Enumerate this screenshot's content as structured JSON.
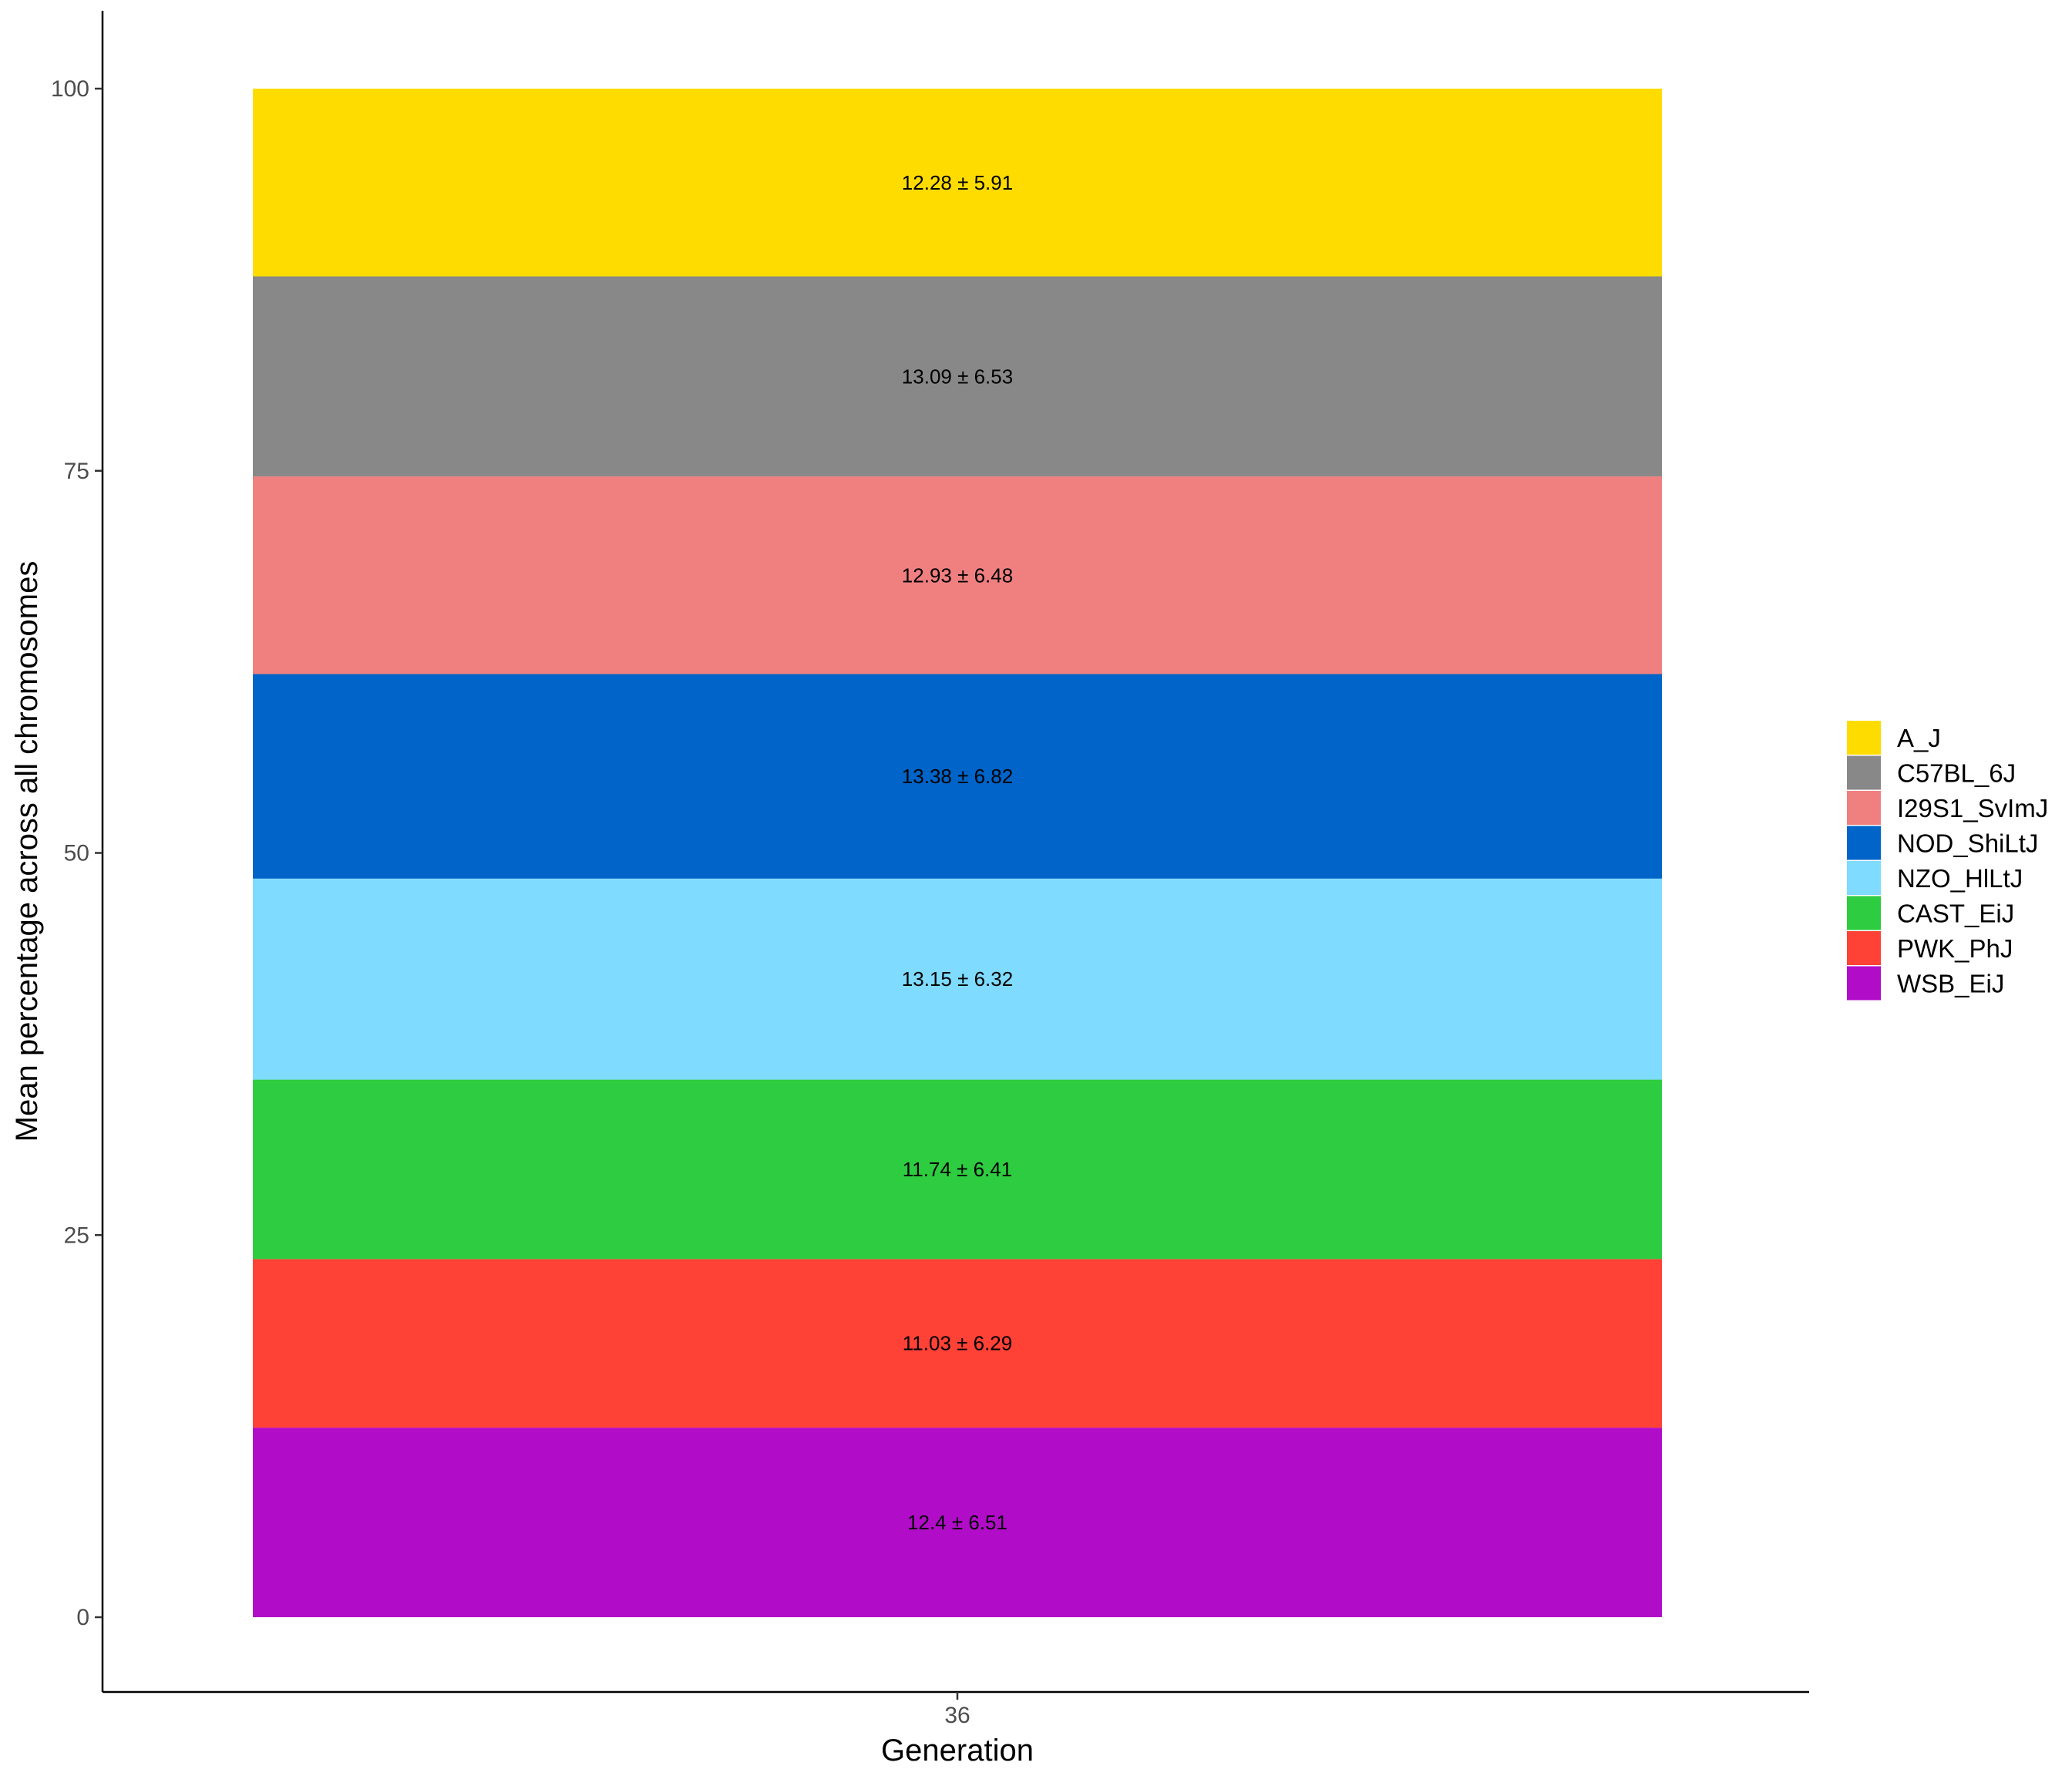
{
  "chart_data": {
    "type": "bar",
    "stacked": true,
    "title": "",
    "xlabel": "Generation",
    "ylabel": "Mean percentage across all chromosomes",
    "categories": [
      "36"
    ],
    "ylim": [
      -5,
      105
    ],
    "yticks": [
      0,
      25,
      50,
      75,
      100
    ],
    "grid": false,
    "legend_position": "right",
    "series": [
      {
        "name": "A_J",
        "values": [
          12.28
        ],
        "label": "12.28 ± 5.91",
        "color": "#FFDC00"
      },
      {
        "name": "C57BL_6J",
        "values": [
          13.09
        ],
        "label": "13.09 ± 6.53",
        "color": "#888888"
      },
      {
        "name": "I29S1_SvImJ",
        "values": [
          12.93
        ],
        "label": "12.93 ± 6.48",
        "color": "#F08080"
      },
      {
        "name": "NOD_ShiLtJ",
        "values": [
          13.38
        ],
        "label": "13.38 ± 6.82",
        "color": "#0064C9"
      },
      {
        "name": "NZO_HlLtJ",
        "values": [
          13.15
        ],
        "label": "13.15 ± 6.32",
        "color": "#7FDBFF"
      },
      {
        "name": "CAST_EiJ",
        "values": [
          11.74
        ],
        "label": "11.74 ± 6.41",
        "color": "#2ECC40"
      },
      {
        "name": "PWK_PhJ",
        "values": [
          11.03
        ],
        "label": "11.03 ± 6.29",
        "color": "#FF4136"
      },
      {
        "name": "WSB_EiJ",
        "values": [
          12.4
        ],
        "label": "12.4 ± 6.51",
        "color": "#B10DC9"
      }
    ]
  }
}
